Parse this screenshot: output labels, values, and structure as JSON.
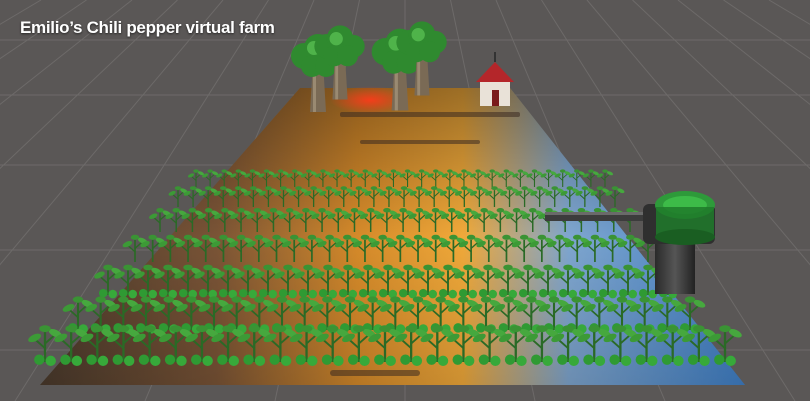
{
  "caption": "Emilio’s Chili pepper virtual farm",
  "scene": {
    "background_color": "#5a5756",
    "grid_color": "#6d6a69",
    "ground": "sunset-desert-texture",
    "trees": 4,
    "plant_rows": 7,
    "objects": [
      "tree-icon",
      "barn-icon",
      "water-tank-icon",
      "irrigation-pipe-icon",
      "chili-plant-icon"
    ]
  }
}
